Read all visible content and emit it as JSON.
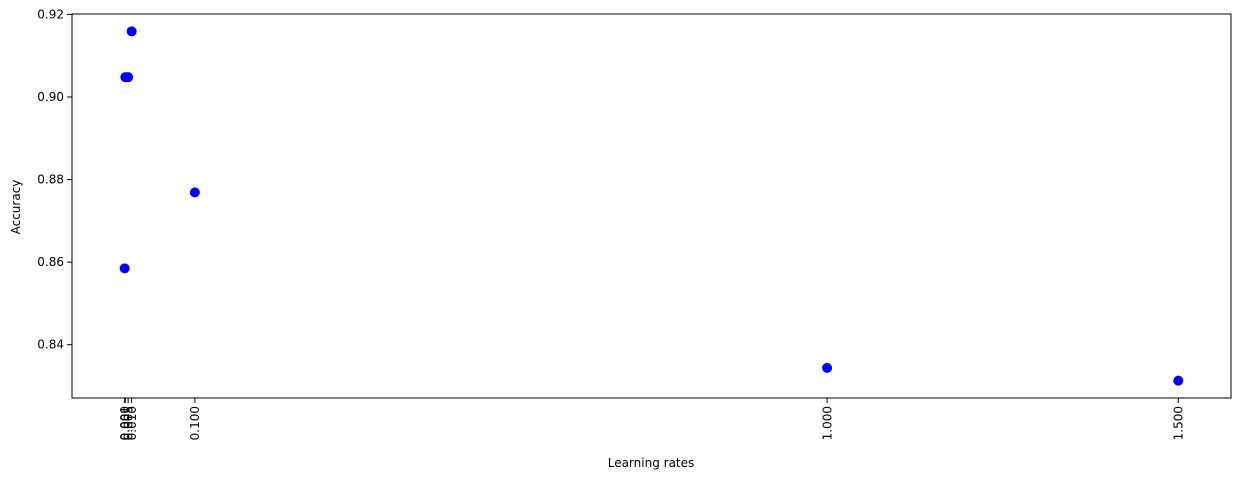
{
  "chart_data": {
    "type": "scatter",
    "title": "",
    "xlabel": "Learning rates",
    "ylabel": "Accuracy",
    "series": [
      {
        "x": [
          0.0001,
          0.001,
          0.005,
          0.01,
          0.1,
          1.0,
          1.5
        ],
        "y": [
          0.8585,
          0.9048,
          0.9048,
          0.9159,
          0.8769,
          0.8344,
          0.8313
        ],
        "color": "#0000ff"
      }
    ],
    "x_ticks": [
      0.0001,
      0.001,
      0.005,
      0.01,
      0.1,
      1.0,
      1.5
    ],
    "x_tick_labels": [
      "0.000",
      "0.001",
      "0.005",
      "0.010",
      "0.100",
      "1.000",
      "1.500"
    ],
    "y_ticks": [
      0.84,
      0.86,
      0.88,
      0.9,
      0.92
    ],
    "y_tick_labels": [
      "0.84",
      "0.86",
      "0.88",
      "0.90",
      "0.92"
    ],
    "xlim": [
      -0.0749,
      1.575
    ],
    "ylim": [
      0.8271,
      0.9201
    ],
    "grid": false,
    "legend": "none",
    "x_tick_rotation": "vertical"
  }
}
